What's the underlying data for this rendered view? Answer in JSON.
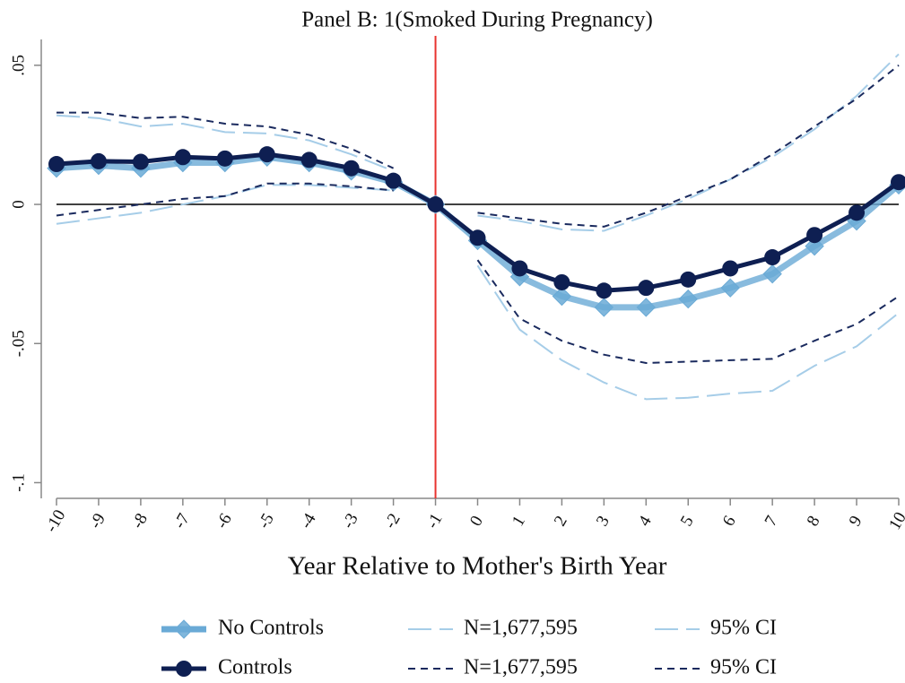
{
  "chart_data": {
    "type": "line",
    "title": "Panel B: 1(Smoked During Pregnancy)",
    "x_label": "Year Relative to Mother's Birth Year",
    "x": [
      -10,
      -9,
      -8,
      -7,
      -6,
      -5,
      -4,
      -3,
      -2,
      -1,
      0,
      1,
      2,
      3,
      4,
      5,
      6,
      7,
      8,
      9,
      10
    ],
    "xlim": [
      -10,
      10
    ],
    "xticks": [
      -10,
      -9,
      -8,
      -7,
      -6,
      -5,
      -4,
      -3,
      -2,
      -1,
      0,
      1,
      2,
      3,
      4,
      5,
      6,
      7,
      8,
      9,
      10
    ],
    "ylim": [
      -0.105,
      0.058
    ],
    "yticks": [
      {
        "value": 0.05,
        "label": ".05"
      },
      0,
      {
        "value": -0.05,
        "label": "-.05"
      },
      {
        "value": -0.1,
        "label": "-.1"
      }
    ],
    "hline": {
      "value": 0,
      "color": "#000000"
    },
    "vline": {
      "value": -1,
      "color": "#e8332f"
    },
    "series": [
      {
        "name": "No Controls",
        "color": "#6aaad6",
        "line": "solid",
        "marker": "diamond",
        "values": [
          0.013,
          0.014,
          0.013,
          0.015,
          0.015,
          0.017,
          0.015,
          0.012,
          0.008,
          0,
          -0.013,
          -0.026,
          -0.033,
          -0.037,
          -0.037,
          -0.034,
          -0.03,
          -0.025,
          -0.015,
          -0.006,
          0.007
        ]
      },
      {
        "name": "N=1,677,595",
        "color": "#a6cde8",
        "line": "long-dash",
        "marker": "none",
        "values": [
          0.032,
          0.031,
          0.028,
          0.029,
          0.026,
          0.0255,
          0.023,
          0.018,
          0.012,
          null,
          -0.004,
          -0.006,
          -0.009,
          -0.0095,
          -0.004,
          0.002,
          0.009,
          0.017,
          0.027,
          0.039,
          0.054
        ]
      },
      {
        "name": "95% CI",
        "color": "#a6cde8",
        "line": "long-dash",
        "marker": "none",
        "values": [
          -0.007,
          -0.005,
          -0.003,
          0.0,
          0.003,
          0.007,
          0.007,
          0.006,
          0.005,
          null,
          -0.022,
          -0.045,
          -0.056,
          -0.064,
          -0.07,
          -0.0695,
          -0.068,
          -0.067,
          -0.058,
          -0.051,
          -0.039
        ]
      },
      {
        "name": "Controls",
        "color": "#0e1f52",
        "line": "solid",
        "marker": "circle",
        "values": [
          0.0145,
          0.0155,
          0.0153,
          0.017,
          0.0165,
          0.018,
          0.016,
          0.013,
          0.0085,
          0,
          -0.012,
          -0.023,
          -0.028,
          -0.031,
          -0.03,
          -0.027,
          -0.023,
          -0.019,
          -0.011,
          -0.003,
          0.008
        ]
      },
      {
        "name": "N=1,677,595",
        "color": "#1a2a5e",
        "line": "short-dash",
        "marker": "none",
        "values": [
          0.033,
          0.033,
          0.031,
          0.0315,
          0.029,
          0.028,
          0.025,
          0.02,
          0.013,
          null,
          -0.003,
          -0.005,
          -0.007,
          -0.008,
          -0.003,
          0.003,
          0.009,
          0.018,
          0.028,
          0.038,
          0.05
        ]
      },
      {
        "name": "95% CI",
        "color": "#1a2a5e",
        "line": "short-dash",
        "marker": "none",
        "values": [
          -0.004,
          -0.002,
          0.0,
          0.002,
          0.003,
          0.0075,
          0.0075,
          0.0065,
          0.005,
          null,
          -0.02,
          -0.041,
          -0.049,
          -0.054,
          -0.057,
          -0.0565,
          -0.056,
          -0.0555,
          -0.049,
          -0.043,
          -0.033
        ]
      }
    ]
  }
}
